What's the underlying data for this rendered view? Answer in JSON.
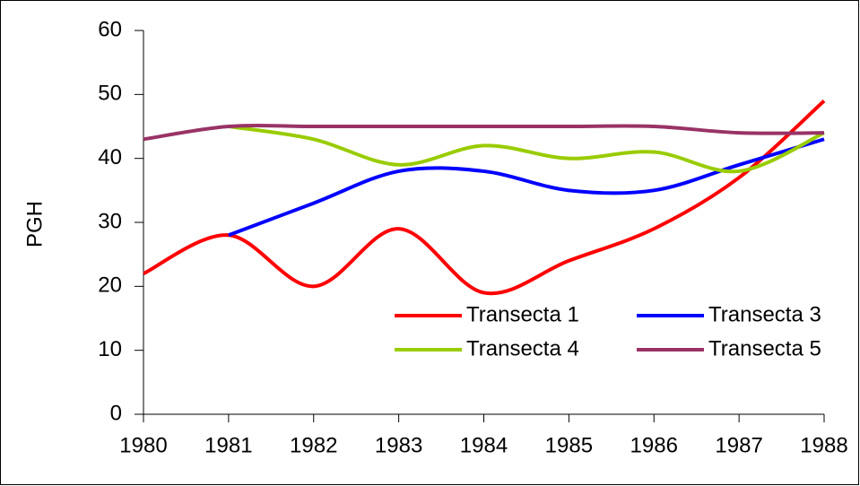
{
  "chart_data": {
    "type": "line",
    "ylabel": "PGH",
    "x": [
      1980,
      1981,
      1982,
      1983,
      1984,
      1985,
      1986,
      1987,
      1988
    ],
    "xlim": [
      1980,
      1988
    ],
    "xticks": [
      1980,
      1981,
      1982,
      1983,
      1984,
      1985,
      1986,
      1987,
      1988
    ],
    "ylim": [
      0,
      60
    ],
    "yticks": [
      0,
      10,
      20,
      30,
      40,
      50,
      60
    ],
    "smooth": true,
    "legend": "lower right",
    "series": [
      {
        "name": "Transecta 1",
        "color": "#ff0000",
        "values": [
          22,
          28,
          20,
          29,
          19,
          24,
          29,
          37,
          49
        ]
      },
      {
        "name": "Transecta 3",
        "color": "#0000ff",
        "values": [
          null,
          28,
          33,
          38,
          38,
          35,
          35,
          39,
          43
        ]
      },
      {
        "name": "Transecta 4",
        "color": "#99cc00",
        "values": [
          null,
          45,
          43,
          39,
          42,
          40,
          41,
          38,
          44
        ]
      },
      {
        "name": "Transecta 5",
        "color": "#993366",
        "values": [
          43,
          45,
          45,
          45,
          45,
          45,
          45,
          44,
          44
        ]
      }
    ]
  }
}
